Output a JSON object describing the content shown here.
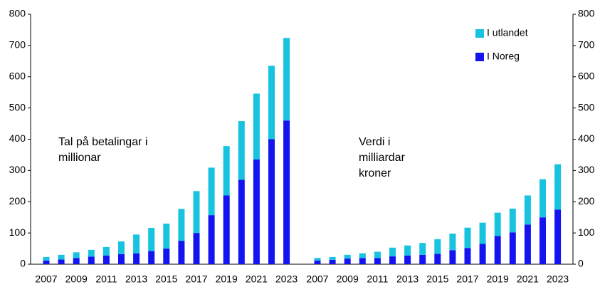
{
  "chart_data": [
    {
      "type": "bar",
      "stacked": true,
      "annotation": [
        "Tal på betalingar i",
        "millionar"
      ],
      "categories": [
        "2007",
        null,
        "2009",
        null,
        "2011",
        null,
        "2013",
        null,
        "2015",
        null,
        "2017",
        null,
        "2019",
        null,
        "2021",
        null,
        "2023"
      ],
      "series": [
        {
          "name": "I Noreg",
          "color": "#1414f0",
          "values": [
            12,
            15,
            20,
            24,
            28,
            32,
            35,
            42,
            50,
            75,
            100,
            157,
            220,
            270,
            335,
            400,
            460
          ]
        },
        {
          "name": "I utlandet",
          "color": "#17c3df",
          "values": [
            11,
            15,
            18,
            22,
            27,
            41,
            60,
            74,
            80,
            102,
            134,
            152,
            158,
            188,
            211,
            235,
            264
          ]
        }
      ],
      "ylim": [
        0,
        800
      ],
      "yticks": [
        0,
        100,
        200,
        300,
        400,
        500,
        600,
        700,
        800
      ],
      "axis_side": "left"
    },
    {
      "type": "bar",
      "stacked": true,
      "annotation": [
        "Verdi i",
        "milliardar",
        "kroner"
      ],
      "categories": [
        "2007",
        null,
        "2009",
        null,
        "2011",
        null,
        "2013",
        null,
        "2015",
        null,
        "2017",
        null,
        "2019",
        null,
        "2021",
        null,
        "2023"
      ],
      "series": [
        {
          "name": "I Noreg",
          "color": "#1414f0",
          "values": [
            12,
            14,
            18,
            20,
            20,
            25,
            28,
            30,
            33,
            45,
            52,
            65,
            90,
            102,
            127,
            150,
            175
          ]
        },
        {
          "name": "I utlandet",
          "color": "#17c3df",
          "values": [
            8,
            9,
            12,
            15,
            20,
            28,
            32,
            38,
            47,
            53,
            65,
            68,
            75,
            76,
            93,
            122,
            145
          ]
        }
      ],
      "ylim": [
        0,
        800
      ],
      "yticks": [
        0,
        100,
        200,
        300,
        400,
        500,
        600,
        700,
        800
      ],
      "axis_side": "right",
      "legend": "top-right"
    }
  ]
}
